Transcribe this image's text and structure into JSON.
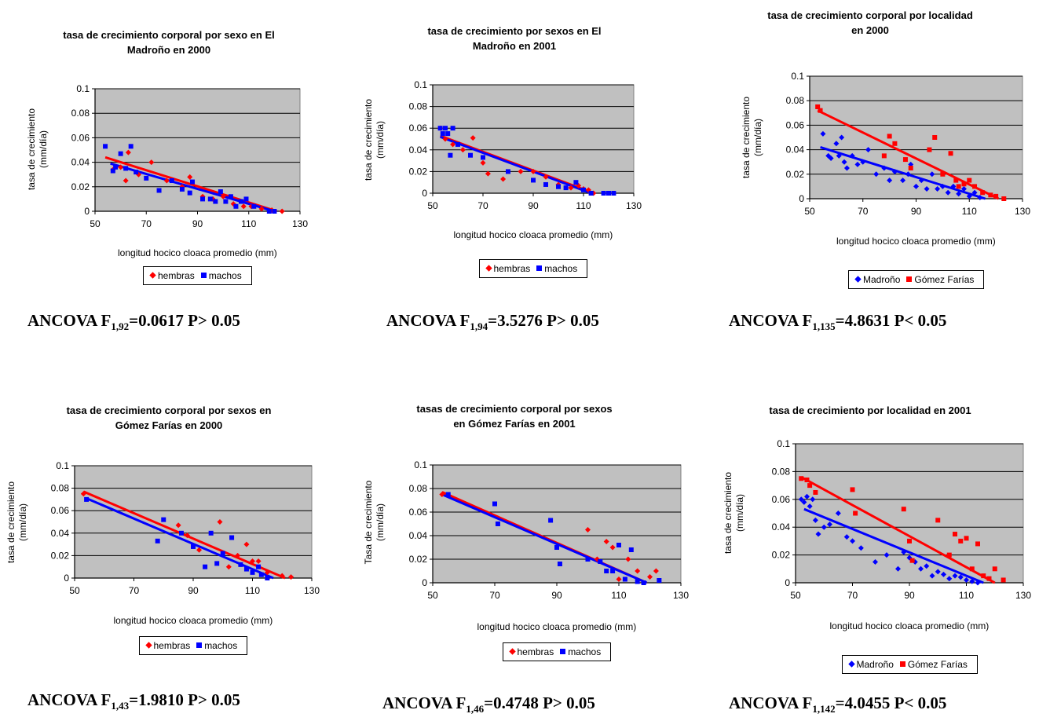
{
  "colors": {
    "plot_bg": "#c0c0c0",
    "red": "#ff0000",
    "blue": "#0000ff",
    "grid": "#000000"
  },
  "chart_data": [
    {
      "id": "p1",
      "type": "scatter",
      "title_lines": [
        "tasa de crecimiento corporal por sexo en El",
        "Madroño en 2000"
      ],
      "ylabel_lines": [
        "tasa de crecimiento",
        "(mm/día)"
      ],
      "xlabel": "longitud hocico cloaca promedio (mm)",
      "xlim": [
        50,
        130
      ],
      "ylim": [
        0,
        0.1
      ],
      "xticks": [
        "50",
        "70",
        "90",
        "110",
        "130"
      ],
      "yticks": [
        "0",
        "0.02",
        "0.04",
        "0.06",
        "0.08",
        "0.1"
      ],
      "grid": true,
      "legend_position": "bottom",
      "ancova": {
        "prefix": "ANCOVA F",
        "sub": "1,92",
        "rest": "=0.0617 P> 0.05"
      },
      "series": [
        {
          "name": "hembras",
          "color": "#ff0000",
          "marker": "diamond",
          "x": [
            57,
            60,
            62,
            63,
            67,
            72,
            78,
            84,
            87,
            92,
            96,
            100,
            104,
            108,
            111,
            115,
            119,
            123
          ],
          "y": [
            0.034,
            0.036,
            0.025,
            0.048,
            0.03,
            0.04,
            0.025,
            0.02,
            0.028,
            0.012,
            0.01,
            0.012,
            0.006,
            0.004,
            0.004,
            0.002,
            0.001,
            0.0
          ],
          "trend": [
            [
              54,
              0.044
            ],
            [
              121,
              0.0
            ]
          ]
        },
        {
          "name": "machos",
          "color": "#0000ff",
          "marker": "square",
          "x": [
            54,
            57,
            58,
            60,
            62,
            64,
            66,
            70,
            75,
            80,
            84,
            87,
            88,
            92,
            95,
            97,
            99,
            101,
            103,
            105,
            107,
            109,
            112,
            118,
            120
          ],
          "y": [
            0.053,
            0.033,
            0.036,
            0.047,
            0.035,
            0.053,
            0.032,
            0.027,
            0.017,
            0.025,
            0.018,
            0.015,
            0.024,
            0.01,
            0.01,
            0.008,
            0.016,
            0.008,
            0.012,
            0.004,
            0.008,
            0.01,
            0.004,
            0.0,
            0.0
          ],
          "trend": [
            [
              56,
              0.039
            ],
            [
              120,
              0.0
            ]
          ]
        }
      ]
    },
    {
      "id": "p2",
      "type": "scatter",
      "title_lines": [
        "tasa de crecimiento por sexos en El",
        "Madroño en 2001"
      ],
      "ylabel_lines": [
        "tasa de crecimiento",
        "(mm/día)"
      ],
      "xlabel": "longitud hocico cloaca promedio (mm)",
      "xlim": [
        50,
        130
      ],
      "ylim": [
        0,
        0.1
      ],
      "xticks": [
        "50",
        "70",
        "90",
        "110",
        "130"
      ],
      "yticks": [
        "0",
        "0.02",
        "0.04",
        "0.06",
        "0.08",
        "0.1"
      ],
      "grid": true,
      "legend_position": "bottom",
      "ancova": {
        "prefix": "ANCOVA F",
        "sub": "1,94",
        "rest": "=3.5276 P> 0.05"
      },
      "series": [
        {
          "name": "hembras",
          "color": "#ff0000",
          "marker": "diamond",
          "x": [
            53,
            55,
            58,
            62,
            66,
            70,
            72,
            78,
            85,
            90,
            95,
            100,
            105,
            108,
            110,
            112,
            114
          ],
          "y": [
            0.06,
            0.05,
            0.045,
            0.04,
            0.051,
            0.028,
            0.018,
            0.013,
            0.02,
            0.02,
            0.015,
            0.008,
            0.005,
            0.007,
            0.004,
            0.003,
            0.0
          ],
          "trend": [
            [
              53,
              0.053
            ],
            [
              113,
              0.001
            ]
          ]
        },
        {
          "name": "machos",
          "color": "#0000ff",
          "marker": "square",
          "x": [
            53,
            54,
            55,
            56,
            57,
            58,
            60,
            65,
            70,
            80,
            90,
            95,
            100,
            103,
            107,
            110,
            113,
            118,
            120,
            122
          ],
          "y": [
            0.06,
            0.055,
            0.06,
            0.055,
            0.035,
            0.06,
            0.045,
            0.035,
            0.033,
            0.02,
            0.012,
            0.008,
            0.006,
            0.005,
            0.01,
            0.003,
            0.0,
            0.0,
            0.0,
            0.0
          ],
          "trend": [
            [
              53,
              0.052
            ],
            [
              113,
              0.0
            ]
          ]
        }
      ]
    },
    {
      "id": "p3",
      "type": "scatter",
      "title_lines": [
        "tasa de crecimiento corporal por localidad",
        "en 2000"
      ],
      "ylabel_lines": [
        "tasa de crecimiento",
        "(mm/día)"
      ],
      "xlabel": "longitud hocico cloaca promedio (mm)",
      "xlim": [
        50,
        130
      ],
      "ylim": [
        0,
        0.1
      ],
      "xticks": [
        "50",
        "70",
        "90",
        "110",
        "130"
      ],
      "yticks": [
        "0",
        "0.02",
        "0.04",
        "0.06",
        "0.08",
        "0.1"
      ],
      "grid": true,
      "legend_position": "bottom",
      "ancova": {
        "prefix": "ANCOVA F",
        "sub": "1,135",
        "rest": "=4.8631 P< 0.05"
      },
      "series": [
        {
          "name": "Madroño",
          "color": "#0000ff",
          "marker": "diamond",
          "x": [
            55,
            57,
            58,
            60,
            61,
            62,
            63,
            64,
            66,
            68,
            70,
            72,
            75,
            78,
            80,
            82,
            85,
            87,
            88,
            90,
            92,
            94,
            96,
            98,
            100,
            102,
            104,
            106,
            108,
            110,
            112,
            114
          ],
          "y": [
            0.053,
            0.035,
            0.033,
            0.045,
            0.035,
            0.05,
            0.03,
            0.025,
            0.035,
            0.028,
            0.03,
            0.04,
            0.02,
            0.025,
            0.015,
            0.022,
            0.015,
            0.02,
            0.028,
            0.01,
            0.015,
            0.008,
            0.02,
            0.008,
            0.01,
            0.005,
            0.01,
            0.004,
            0.008,
            0.002,
            0.005,
            0.001
          ],
          "trend": [
            [
              54,
              0.042
            ],
            [
              116,
              0.0
            ]
          ]
        },
        {
          "name": "Gómez Farías",
          "color": "#ff0000",
          "marker": "square",
          "x": [
            53,
            54,
            78,
            80,
            82,
            86,
            88,
            95,
            97,
            100,
            103,
            105,
            106,
            108,
            110,
            112,
            115,
            118,
            120,
            123
          ],
          "y": [
            0.075,
            0.072,
            0.035,
            0.051,
            0.045,
            0.032,
            0.025,
            0.04,
            0.05,
            0.02,
            0.037,
            0.015,
            0.01,
            0.012,
            0.015,
            0.01,
            0.005,
            0.003,
            0.002,
            0.0
          ],
          "trend": [
            [
              53,
              0.072
            ],
            [
              121,
              0.0
            ]
          ]
        }
      ]
    },
    {
      "id": "p4",
      "type": "scatter",
      "title_lines": [
        "tasa de crecimiento corporal por sexos en",
        "Gómez Farías en 2000"
      ],
      "ylabel_lines": [
        "tasa de crecimiento",
        "(mm/día)"
      ],
      "xlabel": "longitud hocico cloaca promedio (mm)",
      "xlim": [
        50,
        130
      ],
      "ylim": [
        0,
        0.1
      ],
      "xticks": [
        "50",
        "70",
        "90",
        "110",
        "130"
      ],
      "yticks": [
        "0",
        "0.02",
        "0.04",
        "0.06",
        "0.08",
        "0.1"
      ],
      "grid": true,
      "legend_position": "bottom",
      "ancova": {
        "prefix": "ANCOVA F",
        "sub": "1,43",
        "rest": "=1.9810 P> 0.05"
      },
      "series": [
        {
          "name": "hembras",
          "color": "#ff0000",
          "marker": "diamond",
          "x": [
            53,
            85,
            88,
            92,
            99,
            102,
            105,
            108,
            110,
            112,
            115,
            120,
            123
          ],
          "y": [
            0.075,
            0.047,
            0.038,
            0.025,
            0.05,
            0.01,
            0.02,
            0.03,
            0.015,
            0.015,
            0.005,
            0.002,
            0.001
          ],
          "trend": [
            [
              53,
              0.077
            ],
            [
              121,
              0.0
            ]
          ]
        },
        {
          "name": "machos",
          "color": "#0000ff",
          "marker": "square",
          "x": [
            54,
            78,
            80,
            86,
            90,
            94,
            96,
            98,
            100,
            103,
            106,
            108,
            110,
            112,
            113,
            115
          ],
          "y": [
            0.07,
            0.033,
            0.052,
            0.04,
            0.028,
            0.01,
            0.04,
            0.013,
            0.022,
            0.036,
            0.012,
            0.008,
            0.005,
            0.01,
            0.003,
            0.0
          ],
          "trend": [
            [
              54,
              0.071
            ],
            [
              117,
              0.0
            ]
          ]
        }
      ]
    },
    {
      "id": "p5",
      "type": "scatter",
      "title_lines": [
        "tasas de crecimiento corporal por sexos",
        "en Gómez Farías en 2001"
      ],
      "ylabel_lines": [
        "Tasa de crecimiento",
        "(mm/día)"
      ],
      "xlabel": "longitud hocico cloaca promedio (mm)",
      "xlim": [
        50,
        130
      ],
      "ylim": [
        0,
        0.1
      ],
      "xticks": [
        "50",
        "70",
        "90",
        "110",
        "130"
      ],
      "yticks": [
        "0",
        "0.02",
        "0.04",
        "0.06",
        "0.08",
        "0.1"
      ],
      "grid": true,
      "legend_position": "bottom",
      "ancova": {
        "prefix": "ANCOVA F",
        "sub": "1,46",
        "rest": "=0.4748 P> 0.05"
      },
      "series": [
        {
          "name": "hembras",
          "color": "#ff0000",
          "marker": "diamond",
          "x": [
            53,
            100,
            103,
            106,
            108,
            110,
            113,
            116,
            120,
            122
          ],
          "y": [
            0.075,
            0.045,
            0.02,
            0.035,
            0.03,
            0.003,
            0.02,
            0.01,
            0.005,
            0.01
          ],
          "trend": [
            [
              53,
              0.077
            ],
            [
              119,
              0.0
            ]
          ]
        },
        {
          "name": "machos",
          "color": "#0000ff",
          "marker": "square",
          "x": [
            55,
            70,
            71,
            88,
            90,
            91,
            100,
            104,
            106,
            108,
            110,
            112,
            114,
            116,
            118,
            123
          ],
          "y": [
            0.075,
            0.067,
            0.05,
            0.053,
            0.03,
            0.016,
            0.02,
            0.018,
            0.01,
            0.01,
            0.032,
            0.003,
            0.028,
            0.001,
            0.0,
            0.002
          ],
          "trend": [
            [
              53,
              0.075
            ],
            [
              119,
              0.0
            ]
          ]
        }
      ]
    },
    {
      "id": "p6",
      "type": "scatter",
      "title_lines": [
        "tasa de crecimiento por localidad en 2001"
      ],
      "ylabel_lines": [
        "tasa de crecimiento",
        "(mm/día)"
      ],
      "xlabel": "longitud hocico cloaca promedio (mm)",
      "xlim": [
        50,
        130
      ],
      "ylim": [
        0,
        0.1
      ],
      "xticks": [
        "50",
        "70",
        "90",
        "110",
        "130"
      ],
      "yticks": [
        "0",
        "0.02",
        "0.04",
        "0.06",
        "0.08",
        "0.1"
      ],
      "grid": true,
      "legend_position": "bottom",
      "ancova": {
        "prefix": "ANCOVA F",
        "sub": "1,142",
        "rest": "=4.0455 P< 0.05"
      },
      "series": [
        {
          "name": "Madroño",
          "color": "#0000ff",
          "marker": "diamond",
          "x": [
            52,
            53,
            54,
            55,
            56,
            57,
            58,
            60,
            62,
            65,
            68,
            70,
            73,
            78,
            82,
            86,
            88,
            90,
            92,
            94,
            96,
            98,
            100,
            102,
            104,
            106,
            108,
            110,
            112,
            114
          ],
          "y": [
            0.06,
            0.058,
            0.062,
            0.055,
            0.06,
            0.045,
            0.035,
            0.04,
            0.042,
            0.05,
            0.033,
            0.03,
            0.025,
            0.015,
            0.02,
            0.01,
            0.022,
            0.018,
            0.015,
            0.01,
            0.012,
            0.005,
            0.008,
            0.006,
            0.003,
            0.005,
            0.004,
            0.002,
            0.001,
            0.0
          ],
          "trend": [
            [
              53,
              0.053
            ],
            [
              116,
              0.0
            ]
          ]
        },
        {
          "name": "Gómez Farías",
          "color": "#ff0000",
          "marker": "square",
          "x": [
            52,
            54,
            55,
            57,
            70,
            71,
            88,
            90,
            91,
            100,
            104,
            106,
            108,
            110,
            112,
            114,
            116,
            118,
            120,
            123
          ],
          "y": [
            0.075,
            0.074,
            0.07,
            0.065,
            0.067,
            0.05,
            0.053,
            0.03,
            0.016,
            0.045,
            0.02,
            0.035,
            0.03,
            0.032,
            0.01,
            0.028,
            0.005,
            0.003,
            0.01,
            0.002
          ],
          "trend": [
            [
              52,
              0.076
            ],
            [
              120,
              0.0
            ]
          ]
        }
      ]
    }
  ]
}
